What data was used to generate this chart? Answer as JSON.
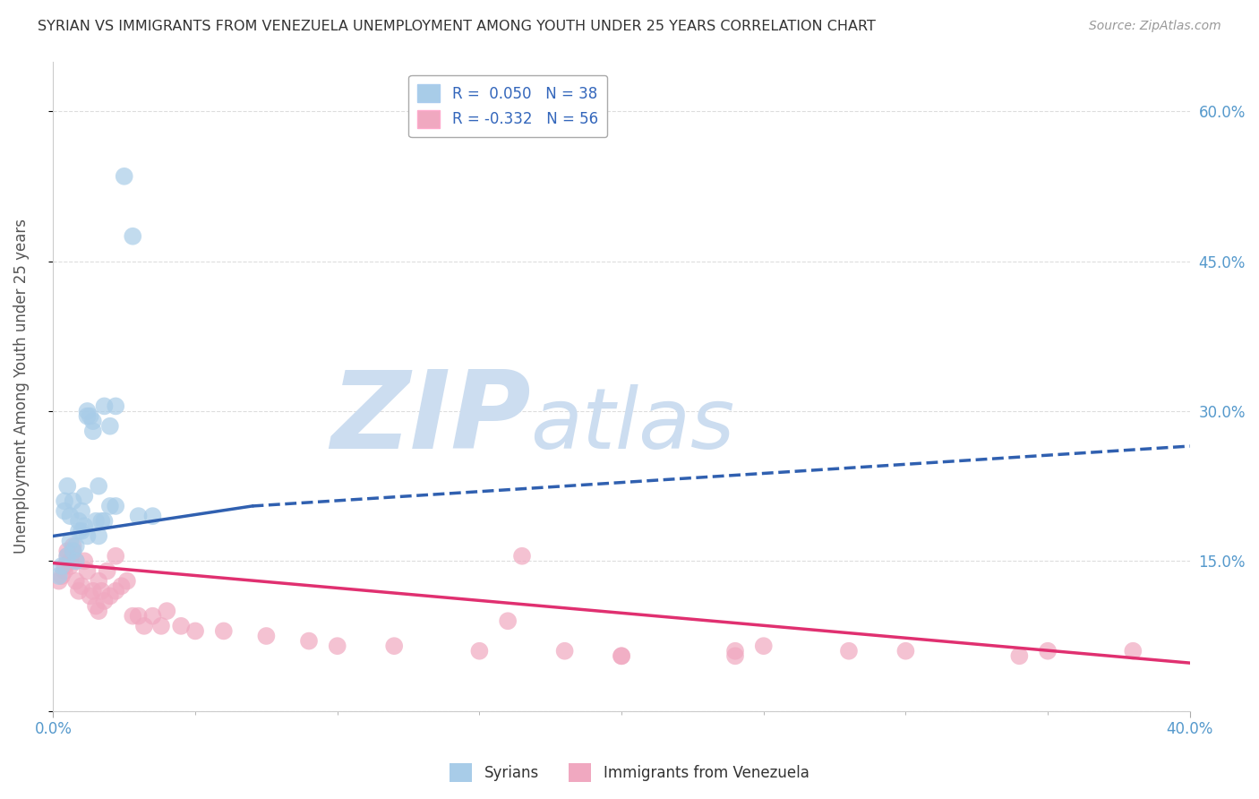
{
  "title": "SYRIAN VS IMMIGRANTS FROM VENEZUELA UNEMPLOYMENT AMONG YOUTH UNDER 25 YEARS CORRELATION CHART",
  "source": "Source: ZipAtlas.com",
  "ylabel": "Unemployment Among Youth under 25 years",
  "xlim": [
    0.0,
    0.4
  ],
  "ylim": [
    0.0,
    0.65
  ],
  "yticks_right": [
    0.0,
    0.15,
    0.3,
    0.45,
    0.6
  ],
  "ytick_labels_right": [
    "",
    "15.0%",
    "30.0%",
    "45.0%",
    "60.0%"
  ],
  "legend_entries": [
    {
      "label": "R =  0.050   N = 38",
      "color": "#a8cce8"
    },
    {
      "label": "R = -0.332   N = 56",
      "color": "#f0a8c0"
    }
  ],
  "syrians_scatter": {
    "color": "#a8cce8",
    "alpha": 0.7,
    "size": 200
  },
  "venezuela_scatter": {
    "color": "#f0a8c0",
    "alpha": 0.7,
    "size": 200
  },
  "syrian_trend_solid": {
    "color": "#3060b0",
    "x_start": 0.0,
    "x_end": 0.07,
    "y_start": 0.175,
    "y_end": 0.205,
    "linestyle": "-",
    "linewidth": 2.5
  },
  "syrian_trend_dashed": {
    "color": "#3060b0",
    "x_start": 0.07,
    "x_end": 0.4,
    "y_start": 0.205,
    "y_end": 0.265,
    "linestyle": "--",
    "linewidth": 2.5
  },
  "venezuela_trend": {
    "color": "#e03070",
    "x_start": 0.0,
    "x_end": 0.4,
    "y_start": 0.148,
    "y_end": 0.048,
    "linestyle": "-",
    "linewidth": 2.5
  },
  "watermark_zip": "ZIP",
  "watermark_atlas": "atlas",
  "watermark_color": "#ccddf0",
  "background_color": "#ffffff",
  "grid_color": "#dddddd",
  "syrians_x": [
    0.002,
    0.003,
    0.004,
    0.004,
    0.005,
    0.005,
    0.006,
    0.006,
    0.007,
    0.007,
    0.008,
    0.008,
    0.009,
    0.009,
    0.01,
    0.01,
    0.011,
    0.011,
    0.012,
    0.012,
    0.013,
    0.014,
    0.015,
    0.016,
    0.017,
    0.018,
    0.02,
    0.022,
    0.025,
    0.028,
    0.03,
    0.035,
    0.018,
    0.022,
    0.012,
    0.016,
    0.014,
    0.02
  ],
  "syrians_y": [
    0.135,
    0.145,
    0.21,
    0.2,
    0.225,
    0.155,
    0.195,
    0.17,
    0.16,
    0.21,
    0.15,
    0.165,
    0.18,
    0.19,
    0.2,
    0.18,
    0.215,
    0.185,
    0.295,
    0.3,
    0.295,
    0.29,
    0.19,
    0.225,
    0.19,
    0.19,
    0.205,
    0.205,
    0.535,
    0.475,
    0.195,
    0.195,
    0.305,
    0.305,
    0.175,
    0.175,
    0.28,
    0.285
  ],
  "venezuela_x": [
    0.002,
    0.003,
    0.004,
    0.004,
    0.005,
    0.005,
    0.006,
    0.006,
    0.007,
    0.007,
    0.008,
    0.008,
    0.009,
    0.01,
    0.011,
    0.012,
    0.013,
    0.014,
    0.015,
    0.016,
    0.016,
    0.017,
    0.018,
    0.019,
    0.02,
    0.022,
    0.022,
    0.024,
    0.026,
    0.028,
    0.03,
    0.032,
    0.035,
    0.038,
    0.04,
    0.045,
    0.05,
    0.06,
    0.075,
    0.09,
    0.1,
    0.12,
    0.15,
    0.18,
    0.2,
    0.25,
    0.3,
    0.34,
    0.38,
    0.165,
    0.24,
    0.35,
    0.2,
    0.28,
    0.24,
    0.16
  ],
  "venezuela_y": [
    0.13,
    0.135,
    0.14,
    0.145,
    0.16,
    0.155,
    0.145,
    0.15,
    0.16,
    0.165,
    0.15,
    0.13,
    0.12,
    0.125,
    0.15,
    0.14,
    0.115,
    0.12,
    0.105,
    0.1,
    0.13,
    0.12,
    0.11,
    0.14,
    0.115,
    0.12,
    0.155,
    0.125,
    0.13,
    0.095,
    0.095,
    0.085,
    0.095,
    0.085,
    0.1,
    0.085,
    0.08,
    0.08,
    0.075,
    0.07,
    0.065,
    0.065,
    0.06,
    0.06,
    0.055,
    0.065,
    0.06,
    0.055,
    0.06,
    0.155,
    0.06,
    0.06,
    0.055,
    0.06,
    0.055,
    0.09
  ]
}
